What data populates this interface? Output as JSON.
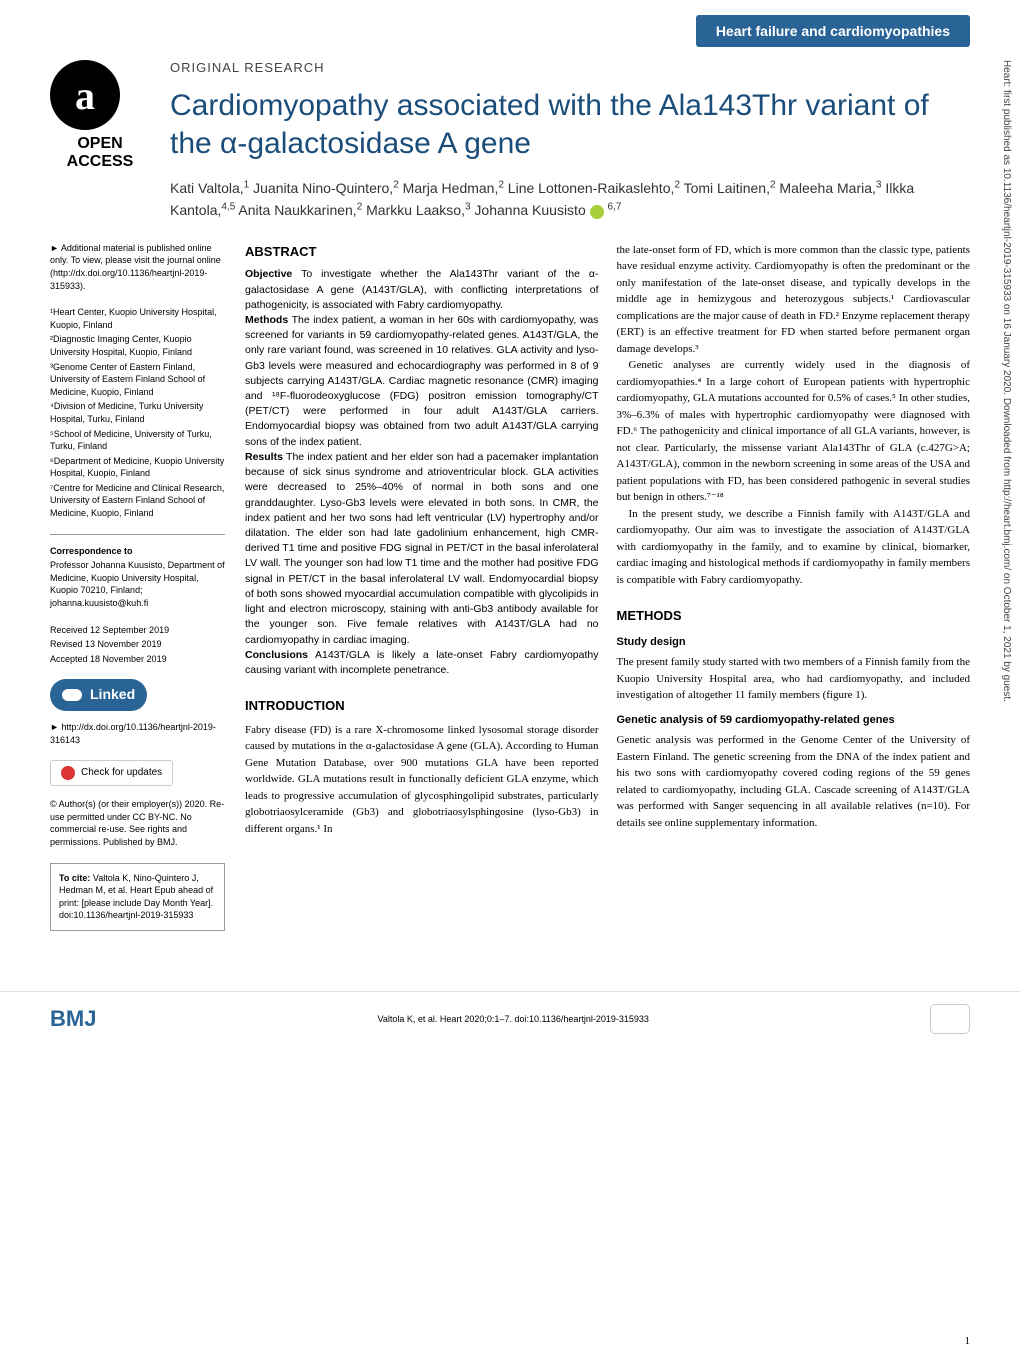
{
  "header": {
    "badge": "Heart failure and cardiomyopathies"
  },
  "openAccess": {
    "icon": "a",
    "label": "OPEN ACCESS"
  },
  "article": {
    "type": "ORIGINAL RESEARCH",
    "title": "Cardiomyopathy associated with the Ala143Thr variant of the α-galactosidase A gene",
    "authors_html": "Kati Valtola,<sup>1</sup> Juanita Nino-Quintero,<sup>2</sup> Marja Hedman,<sup>2</sup> Line Lottonen-Raikaslehto,<sup>2</sup> Tomi Laitinen,<sup>2</sup> Maleeha Maria,<sup>3</sup> Ilkka Kantola,<sup>4,5</sup> Anita Naukkarinen,<sup>2</sup> Markku Laakso,<sup>3</sup> Johanna Kuusisto <span class='orcid'></span> <sup>6,7</sup>"
  },
  "sidebar": {
    "supplement": "► Additional material is published online only. To view, please visit the journal online (http://dx.doi.org/10.1136/heartjnl-2019-315933).",
    "affiliations": [
      "¹Heart Center, Kuopio University Hospital, Kuopio, Finland",
      "²Diagnostic Imaging Center, Kuopio University Hospital, Kuopio, Finland",
      "³Genome Center of Eastern Finland, University of Eastern Finland School of Medicine, Kuopio, Finland",
      "⁴Division of Medicine, Turku University Hospital, Turku, Finland",
      "⁵School of Medicine, University of Turku, Turku, Finland",
      "⁶Department of Medicine, Kuopio University Hospital, Kuopio, Finland",
      "⁷Centre for Medicine and Clinical Research, University of Eastern Finland School of Medicine, Kuopio, Finland"
    ],
    "correspondence_heading": "Correspondence to",
    "correspondence_body": "Professor Johanna Kuusisto, Department of Medicine, Kuopio University Hospital, Kuopio 70210, Finland; johanna.kuusisto@kuh.fi",
    "dates": [
      "Received 12 September 2019",
      "Revised 13 November 2019",
      "Accepted 18 November 2019"
    ],
    "linked_label": "Linked",
    "linked_doi": "► http://dx.doi.org/10.1136/heartjnl-2019-316143",
    "check_updates": "Check for updates",
    "copyright": "© Author(s) (or their employer(s)) 2020. Re-use permitted under CC BY-NC. No commercial re-use. See rights and permissions. Published by BMJ.",
    "cite_label": "To cite:",
    "cite_body": "Valtola K, Nino-Quintero J, Hedman M, et al. Heart Epub ahead of print: [please include Day Month Year]. doi:10.1136/heartjnl-2019-315933"
  },
  "abstract": {
    "heading": "ABSTRACT",
    "objective_label": "Objective",
    "objective": "To investigate whether the Ala143Thr variant of the α-galactosidase A gene (A143T/GLA), with conflicting interpretations of pathogenicity, is associated with Fabry cardiomyopathy.",
    "methods_label": "Methods",
    "methods": "The index patient, a woman in her 60s with cardiomyopathy, was screened for variants in 59 cardiomyopathy-related genes. A143T/GLA, the only rare variant found, was screened in 10 relatives. GLA activity and lyso-Gb3 levels were measured and echocardiography was performed in 8 of 9 subjects carrying A143T/GLA. Cardiac magnetic resonance (CMR) imaging and ¹⁸F-fluorodeoxyglucose (FDG) positron emission tomography/CT (PET/CT) were performed in four adult A143T/GLA carriers. Endomyocardial biopsy was obtained from two adult A143T/GLA carrying sons of the index patient.",
    "results_label": "Results",
    "results": "The index patient and her elder son had a pacemaker implantation because of sick sinus syndrome and atrioventricular block. GLA activities were decreased to 25%–40% of normal in both sons and one granddaughter. Lyso-Gb3 levels were elevated in both sons. In CMR, the index patient and her two sons had left ventricular (LV) hypertrophy and/or dilatation. The elder son had late gadolinium enhancement, high CMR-derived T1 time and positive FDG signal in PET/CT in the basal inferolateral LV wall. The younger son had low T1 time and the mother had positive FDG signal in PET/CT in the basal inferolateral LV wall. Endomyocardial biopsy of both sons showed myocardial accumulation compatible with glycolipids in light and electron microscopy, staining with anti-Gb3 antibody available for the younger son. Five female relatives with A143T/GLA had no cardiomyopathy in cardiac imaging.",
    "conclusions_label": "Conclusions",
    "conclusions": "A143T/GLA is likely a late-onset Fabry cardiomyopathy causing variant with incomplete penetrance."
  },
  "intro": {
    "heading": "INTRODUCTION",
    "p1": "Fabry disease (FD) is a rare X-chromosome linked lysosomal storage disorder caused by mutations in the α-galactosidase A gene (GLA). According to Human Gene Mutation Database, over 900 mutations GLA have been reported worldwide. GLA mutations result in functionally deficient GLA enzyme, which leads to progressive accumulation of glycosphingolipid substrates, particularly globotriaosylceramide (Gb3) and globotriaosylsphingosine (lyso-Gb3) in different organs.¹ In",
    "p2_col2": "the late-onset form of FD, which is more common than the classic type, patients have residual enzyme activity. Cardiomyopathy is often the predominant or the only manifestation of the late-onset disease, and typically develops in the middle age in hemizygous and heterozygous subjects.¹ Cardiovascular complications are the major cause of death in FD.² Enzyme replacement therapy (ERT) is an effective treatment for FD when started before permanent organ damage develops.³",
    "p3": "Genetic analyses are currently widely used in the diagnosis of cardiomyopathies.⁴ In a large cohort of European patients with hypertrophic cardiomyopathy, GLA mutations accounted for 0.5% of cases.⁵ In other studies, 3%–6.3% of males with hypertrophic cardiomyopathy were diagnosed with FD.⁶ The pathogenicity and clinical importance of all GLA variants, however, is not clear. Particularly, the missense variant Ala143Thr of GLA (c.427G>A; A143T/GLA), common in the newborn screening in some areas of the USA and patient populations with FD, has been considered pathogenic in several studies but benign in others.⁷⁻¹⁸",
    "p4": "In the present study, we describe a Finnish family with A143T/GLA and cardiomyopathy. Our aim was to investigate the association of A143T/GLA with cardiomyopathy in the family, and to examine by clinical, biomarker, cardiac imaging and histological methods if cardiomyopathy in family members is compatible with Fabry cardiomyopathy."
  },
  "methods": {
    "heading": "METHODS",
    "design_heading": "Study design",
    "design_body": "The present family study started with two members of a Finnish family from the Kuopio University Hospital area, who had cardiomyopathy, and included investigation of altogether 11 family members (figure 1).",
    "genes_heading": "Genetic analysis of 59 cardiomyopathy-related genes",
    "genes_body": "Genetic analysis was performed in the Genome Center of the University of Eastern Finland. The genetic screening from the DNA of the index patient and his two sons with cardiomyopathy covered coding regions of the 59 genes related to cardiomyopathy, including GLA. Cascade screening of A143T/GLA was performed with Sanger sequencing in all available relatives (n=10). For details see online supplementary information."
  },
  "footer": {
    "bmj": "BMJ",
    "citation": "Valtola K, et al. Heart 2020;0:1–7. doi:10.1136/heartjnl-2019-315933",
    "page": "1"
  },
  "margin_note": "Heart: first published as 10.1136/heartjnl-2019-315933 on 16 January 2020. Downloaded from http://heart.bmj.com/ on October 1, 2021 by guest."
}
